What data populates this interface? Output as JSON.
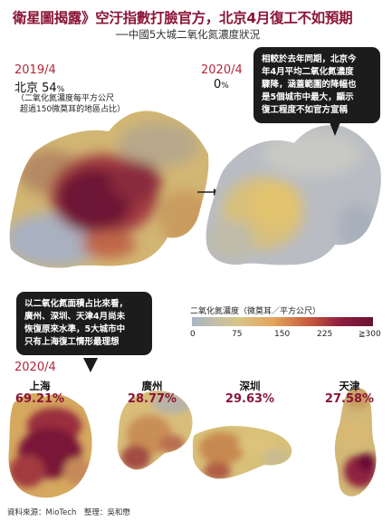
{
  "header": {
    "title": "衛星圖揭露》空汙指數打臉官方，北京4月復工不如預期",
    "subtitle": "──中國5大城二氧化氮濃度狀況"
  },
  "beijing": {
    "left": {
      "year": "2019/4",
      "city": "北京",
      "pct": "54",
      "pct_unit": "%",
      "note_lines": [
        "（二氧化氮濃度每平方公尺",
        "超過150微莫耳的地區占比）"
      ]
    },
    "right": {
      "year": "2020/4",
      "pct": "0",
      "pct_unit": "%"
    },
    "bubble_lines": [
      "相較於去年同期，北京今",
      "年4月平均二氧化氮濃度",
      "驟降，涵蓋範圍的降幅也",
      "是5個城市中最大，顯示",
      "復工程度不如官方宣稱"
    ]
  },
  "legend": {
    "title": "二氧化氮濃度（微莫耳／平方公尺）",
    "ticks": [
      "0",
      "75",
      "150",
      "225",
      "≧300"
    ]
  },
  "cities_bubble_lines": [
    "以二氧化氮面積占比來看，",
    "廣州、深圳、天津4月尚未",
    "恢復原來水準，5大城市中",
    "只有上海復工情形最理想"
  ],
  "cities_year": "2020/4",
  "cities": [
    {
      "name": "上海",
      "pct": "69.21%"
    },
    {
      "name": "廣州",
      "pct": "28.77%"
    },
    {
      "name": "深圳",
      "pct": "29.63%"
    },
    {
      "name": "天津",
      "pct": "27.58%"
    }
  ],
  "footer": "資料來源：MioTech　整理：吳和懋",
  "colors": {
    "accent": "#8a1538",
    "year_red": "#b3283a",
    "bubble_bg": "#1c1c1c"
  }
}
